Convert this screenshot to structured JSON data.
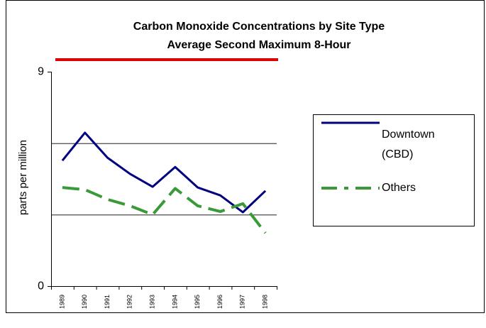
{
  "chart_data": {
    "type": "line",
    "title": "Carbon Monoxide Concentrations by Site Type",
    "subtitle": "Average Second Maximum 8-Hour",
    "y_label": "parts per million",
    "categories": [
      "1989",
      "1990",
      "1991",
      "1992",
      "1993",
      "1994",
      "1995",
      "1996",
      "1997",
      "1998"
    ],
    "series": [
      {
        "name": "Downtown (CBD)",
        "color": "#000080",
        "dash": "solid",
        "values": [
          5.27,
          6.44,
          5.39,
          4.71,
          4.17,
          5.0,
          4.14,
          3.81,
          3.1,
          4.0
        ]
      },
      {
        "name": "Others",
        "color": "#3a9a3a",
        "dash": "dashed",
        "values": [
          4.14,
          4.05,
          3.64,
          3.37,
          3.0,
          4.1,
          3.37,
          3.13,
          3.46,
          2.23
        ]
      }
    ],
    "ylim": [
      0,
      9
    ],
    "yticks": [
      0,
      9
    ],
    "gridlines": [
      3,
      6
    ],
    "legend": "right"
  }
}
